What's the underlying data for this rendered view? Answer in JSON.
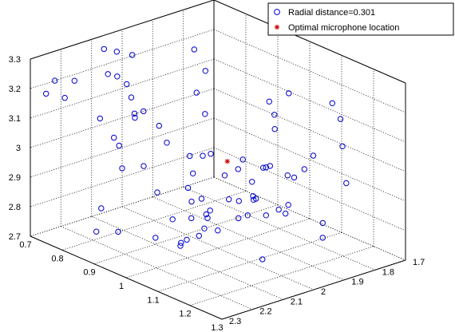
{
  "chart_data": {
    "type": "scatter3d",
    "title": "",
    "xlabel": "",
    "ylabel": "",
    "zlabel": "",
    "xlim": [
      0.7,
      1.3
    ],
    "ylim": [
      1.7,
      2.3
    ],
    "zlim": [
      2.7,
      3.3
    ],
    "grid": true,
    "legend_position": "top-right",
    "x_ticks": [
      "0.7",
      "0.8",
      "0.9",
      "1",
      "1.1",
      "1.2",
      "1.3"
    ],
    "y_ticks": [
      "1.7",
      "1.8",
      "1.9",
      "2",
      "2.1",
      "2.2",
      "2.3"
    ],
    "z_ticks": [
      "2.7",
      "2.8",
      "2.9",
      "3",
      "3.1",
      "3.2",
      "3.3"
    ],
    "series": [
      {
        "name": "Radial distance=0.301",
        "marker": "circle",
        "color": "#0000cc",
        "points": [
          [
            0.7,
            1.93,
            3.0
          ],
          [
            0.7,
            1.97,
            3.06
          ],
          [
            0.7,
            2.0,
            2.83
          ],
          [
            0.7,
            2.01,
            2.91
          ],
          [
            0.7,
            2.22,
            3.2
          ],
          [
            0.71,
            1.97,
            3.01
          ],
          [
            0.72,
            1.75,
            2.94
          ],
          [
            0.72,
            1.9,
            2.95
          ],
          [
            0.72,
            2.08,
            3.27
          ],
          [
            0.73,
            1.8,
            2.76
          ],
          [
            0.73,
            2.28,
            3.19
          ],
          [
            0.74,
            2.0,
            3.02
          ],
          [
            0.74,
            2.11,
            2.75
          ],
          [
            0.75,
            1.78,
            3.11
          ],
          [
            0.76,
            2.08,
            3.28
          ],
          [
            0.76,
            2.25,
            3.18
          ],
          [
            0.77,
            2.04,
            3.26
          ],
          [
            0.77,
            2.1,
            3.0
          ],
          [
            0.78,
            1.82,
            2.85
          ],
          [
            0.78,
            2.13,
            3.23
          ],
          [
            0.79,
            2.11,
            3.22
          ],
          [
            0.8,
            1.71,
            2.81
          ],
          [
            0.8,
            2.26,
            3.26
          ],
          [
            0.81,
            2.0,
            2.8
          ],
          [
            0.81,
            2.1,
            3.2
          ],
          [
            0.82,
            1.91,
            2.79
          ],
          [
            0.83,
            1.9,
            3.26
          ],
          [
            0.83,
            2.22,
            2.75
          ],
          [
            0.84,
            1.92,
            2.7
          ],
          [
            0.86,
            2.18,
            2.75
          ],
          [
            0.87,
            1.74,
            2.72
          ],
          [
            0.87,
            1.89,
            2.73
          ],
          [
            0.88,
            1.76,
            2.74
          ],
          [
            0.88,
            2.26,
            3.17
          ],
          [
            0.9,
            1.71,
            2.96
          ],
          [
            0.9,
            1.94,
            2.7
          ],
          [
            0.91,
            1.94,
            2.74
          ],
          [
            0.91,
            2.11,
            2.73
          ],
          [
            0.92,
            1.8,
            2.76
          ],
          [
            0.92,
            1.97,
            2.82
          ],
          [
            0.94,
            1.78,
            2.71
          ],
          [
            0.94,
            1.84,
            2.73
          ],
          [
            0.94,
            2.06,
            2.7
          ],
          [
            0.94,
            2.18,
            3.01
          ],
          [
            0.95,
            1.72,
            2.83
          ],
          [
            0.95,
            1.78,
            3.1
          ],
          [
            0.96,
            2.02,
            2.73
          ],
          [
            0.96,
            2.06,
            2.73
          ],
          [
            0.97,
            1.77,
            2.74
          ],
          [
            0.98,
            1.73,
            2.84
          ],
          [
            0.99,
            2.11,
            2.75
          ],
          [
            1.0,
            1.77,
            2.77
          ],
          [
            1.0,
            2.07,
            3.25
          ],
          [
            1.01,
            1.84,
            2.93
          ],
          [
            1.02,
            1.8,
            2.76
          ],
          [
            1.04,
            1.81,
            3.18
          ],
          [
            1.04,
            2.08,
            2.86
          ],
          [
            1.04,
            2.19,
            2.88
          ],
          [
            1.05,
            2.03,
            2.98
          ],
          [
            1.06,
            1.72,
            2.72
          ],
          [
            1.07,
            2.24,
            3.17
          ],
          [
            1.09,
            1.72,
            3.14
          ],
          [
            1.09,
            2.18,
            2.96
          ],
          [
            1.11,
            1.93,
            3.18
          ],
          [
            1.13,
            1.99,
            2.72
          ],
          [
            1.13,
            2.1,
            2.96
          ],
          [
            1.14,
            2.08,
            3.06
          ],
          [
            1.15,
            2.18,
            3.15
          ],
          [
            1.16,
            1.76,
            3.04
          ],
          [
            1.16,
            2.1,
            2.91
          ],
          [
            1.17,
            2.02,
            3.06
          ],
          [
            1.18,
            2.04,
            3.07
          ],
          [
            1.18,
            2.28,
            3.19
          ],
          [
            1.2,
            2.14,
            3.0
          ],
          [
            1.22,
            1.81,
            2.96
          ],
          [
            1.22,
            2.23,
            2.94
          ],
          [
            1.24,
            1.85,
            3.2
          ],
          [
            1.26,
            2.16,
            3.1
          ],
          [
            1.27,
            1.97,
            3.13
          ],
          [
            1.28,
            1.95,
            2.85
          ],
          [
            1.29,
            2.02,
            3.11
          ]
        ]
      },
      {
        "name": "Optimal microphone location",
        "marker": "asterisk",
        "color": "#cc0000",
        "points": [
          [
            1.02,
            1.99,
            3.0
          ]
        ]
      }
    ]
  },
  "colors": {
    "axis": "#000000",
    "grid": "#000000",
    "series_1": "#0000cc",
    "series_2": "#cc0000",
    "background": "#ffffff"
  }
}
